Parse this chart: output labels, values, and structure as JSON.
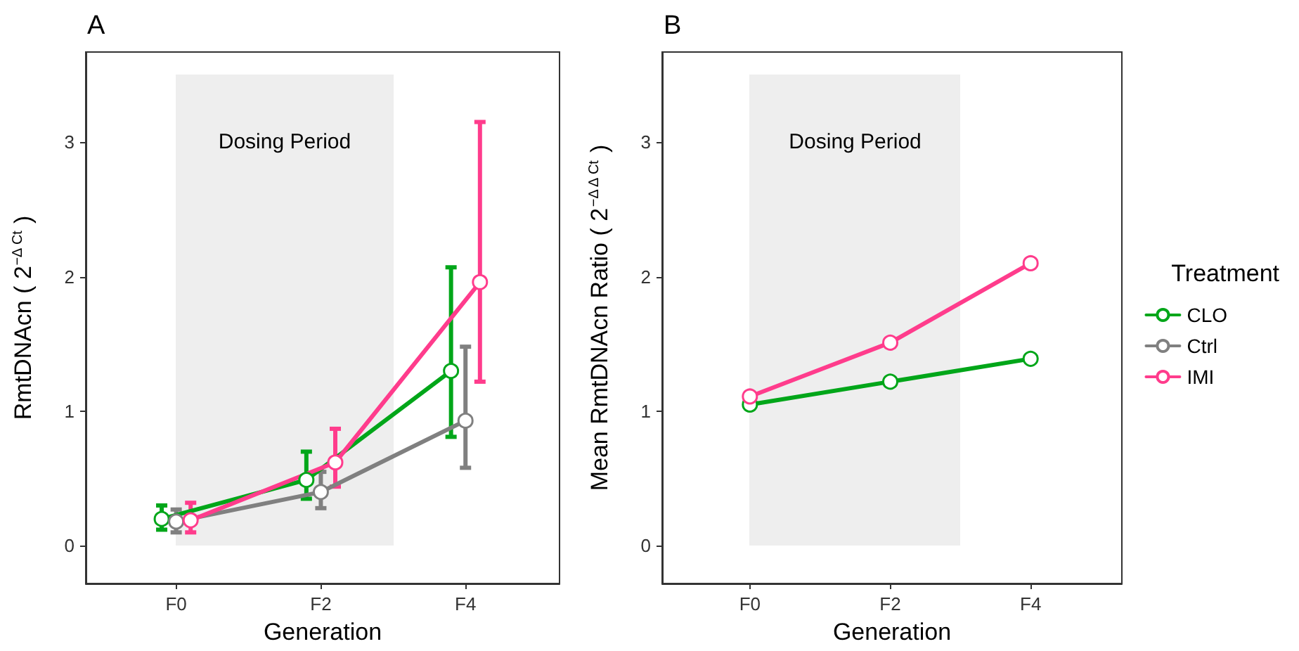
{
  "chart_data": [
    {
      "type": "line",
      "title": "A",
      "xlabel": "Generation",
      "ylabel": "RmtDNAcn ( 2$^{−Δ Ct}$ )",
      "categories": [
        "F0",
        null,
        "F2",
        null,
        "F4"
      ],
      "ylim": [
        -0.28,
        3.67
      ],
      "yticks": [
        0,
        1,
        2,
        3
      ],
      "grid": false,
      "marker": "circle",
      "line_style": "solid",
      "annotations": [
        "Dosing Period"
      ],
      "series": [
        {
          "color": "#00a619",
          "values": [
            0.2,
            null,
            0.49,
            null,
            1.3
          ],
          "errors": [
            [
              0.12,
              0.3
            ],
            null,
            [
              0.35,
              0.7
            ],
            null,
            [
              0.81,
              2.07
            ]
          ]
        },
        {
          "color": "#808080",
          "values": [
            0.18,
            null,
            0.4,
            null,
            0.93
          ],
          "errors": [
            [
              0.1,
              0.27
            ],
            null,
            [
              0.28,
              0.55
            ],
            null,
            [
              0.58,
              1.48
            ]
          ]
        },
        {
          "color": "#ff3c8c",
          "values": [
            0.19,
            null,
            0.62,
            null,
            1.96
          ],
          "errors": [
            [
              0.1,
              0.32
            ],
            null,
            [
              0.44,
              0.87
            ],
            null,
            [
              1.22,
              3.15
            ]
          ]
        }
      ]
    },
    {
      "type": "line",
      "title": "B",
      "xlabel": "Generation",
      "ylabel": "Mean RmtDNAcn Ratio ( 2$^{−Δ Δ Ct}$ )",
      "categories": [
        "F0",
        null,
        "F2",
        null,
        "F4"
      ],
      "ylim": [
        -0.28,
        3.67
      ],
      "yticks": [
        0,
        1,
        2,
        3
      ],
      "grid": false,
      "marker": "circle",
      "line_style": "solid",
      "legend": "right",
      "legend_title": "Treatment",
      "annotations": [
        "Dosing Period"
      ],
      "series": [
        {
          "name": "CLO",
          "color": "#00a619",
          "values": [
            1.05,
            null,
            1.22,
            null,
            1.39
          ]
        },
        {
          "name": "Ctrl",
          "color": "#808080",
          "values": [
            null,
            null,
            null,
            null,
            null
          ]
        },
        {
          "name": "IMI",
          "color": "#ff3c8c",
          "values": [
            1.11,
            null,
            1.51,
            null,
            2.1
          ]
        }
      ]
    }
  ]
}
